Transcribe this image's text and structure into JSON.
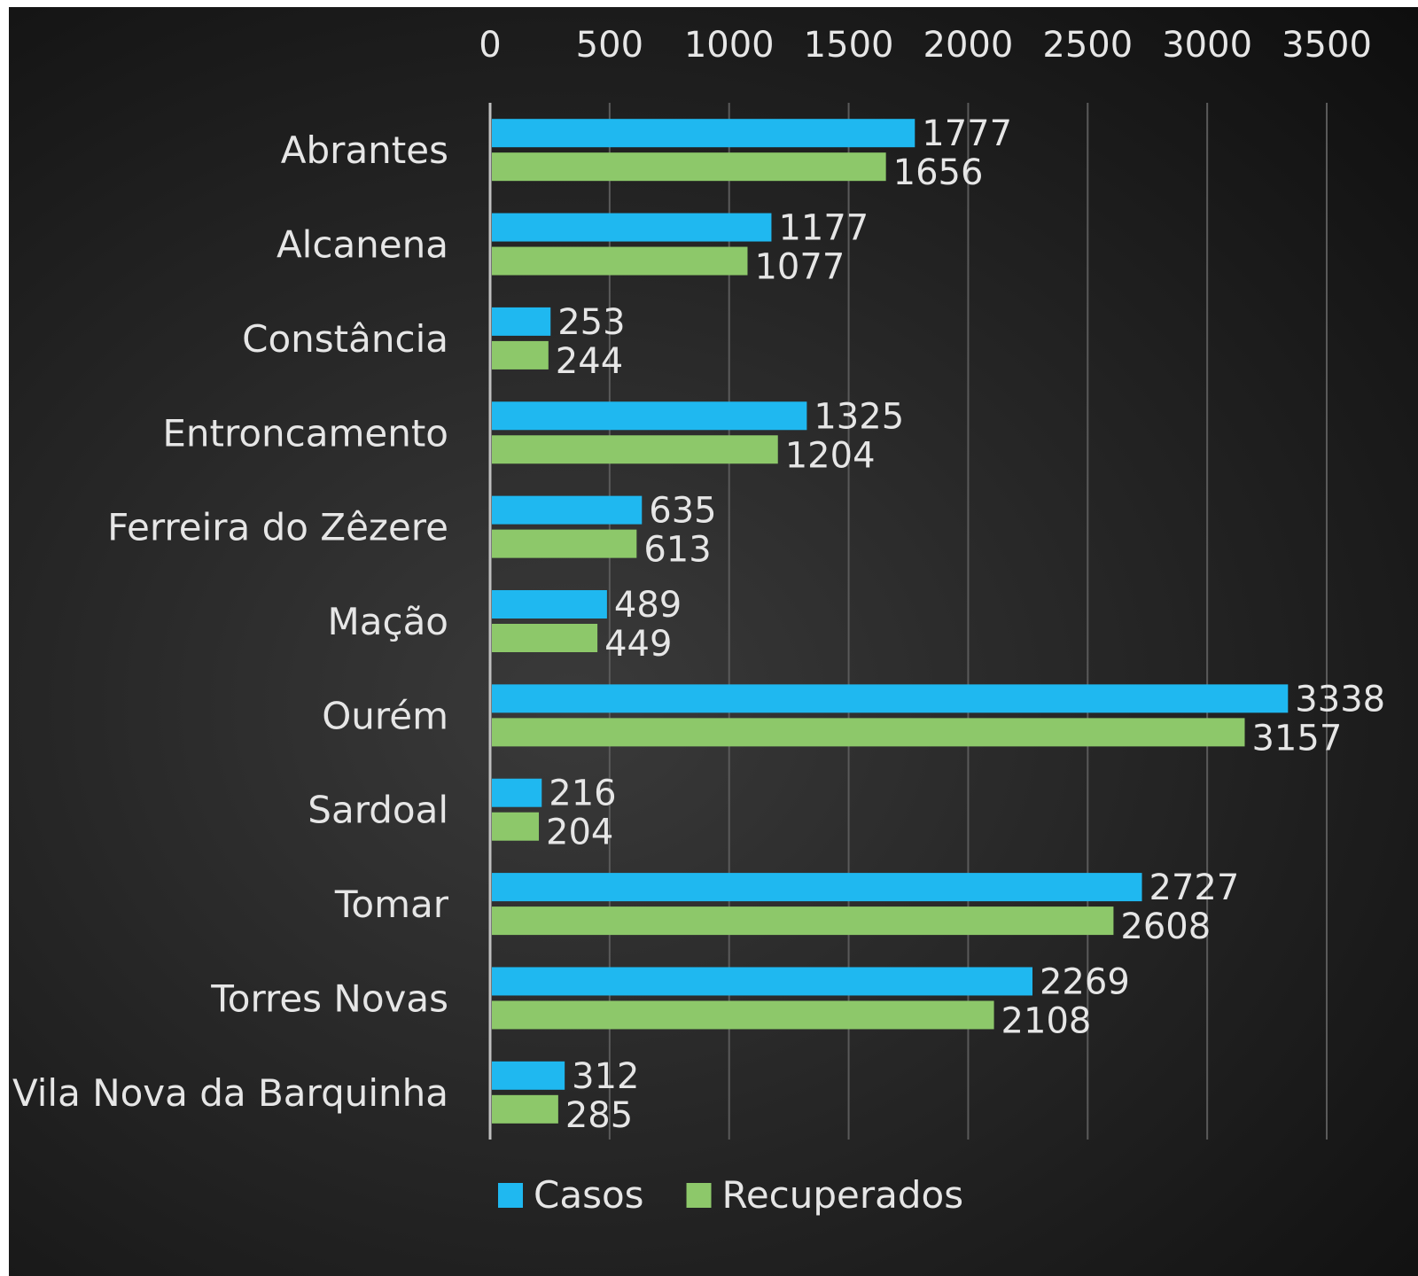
{
  "chart_data": {
    "type": "bar",
    "orientation": "horizontal",
    "title": "",
    "xlabel": "",
    "ylabel": "",
    "xlim": [
      0,
      3500
    ],
    "x_ticks": [
      0,
      500,
      1000,
      1500,
      2000,
      2500,
      3000,
      3500
    ],
    "x_axis_position": "top",
    "grid": true,
    "legend_position": "bottom",
    "categories": [
      "Abrantes",
      "Alcanena",
      "Constância",
      "Entroncamento",
      "Ferreira do Zêzere",
      "Mação",
      "Ourém",
      "Sardoal",
      "Tomar",
      "Torres Novas",
      "Vila Nova da Barquinha"
    ],
    "series": [
      {
        "name": "Casos",
        "color": "#1fb8f0",
        "values": [
          1777,
          1177,
          253,
          1325,
          635,
          489,
          3338,
          216,
          2727,
          2269,
          312
        ]
      },
      {
        "name": "Recuperados",
        "color": "#8dc86a",
        "values": [
          1656,
          1077,
          244,
          1204,
          613,
          449,
          3157,
          204,
          2608,
          2108,
          285
        ]
      }
    ]
  }
}
